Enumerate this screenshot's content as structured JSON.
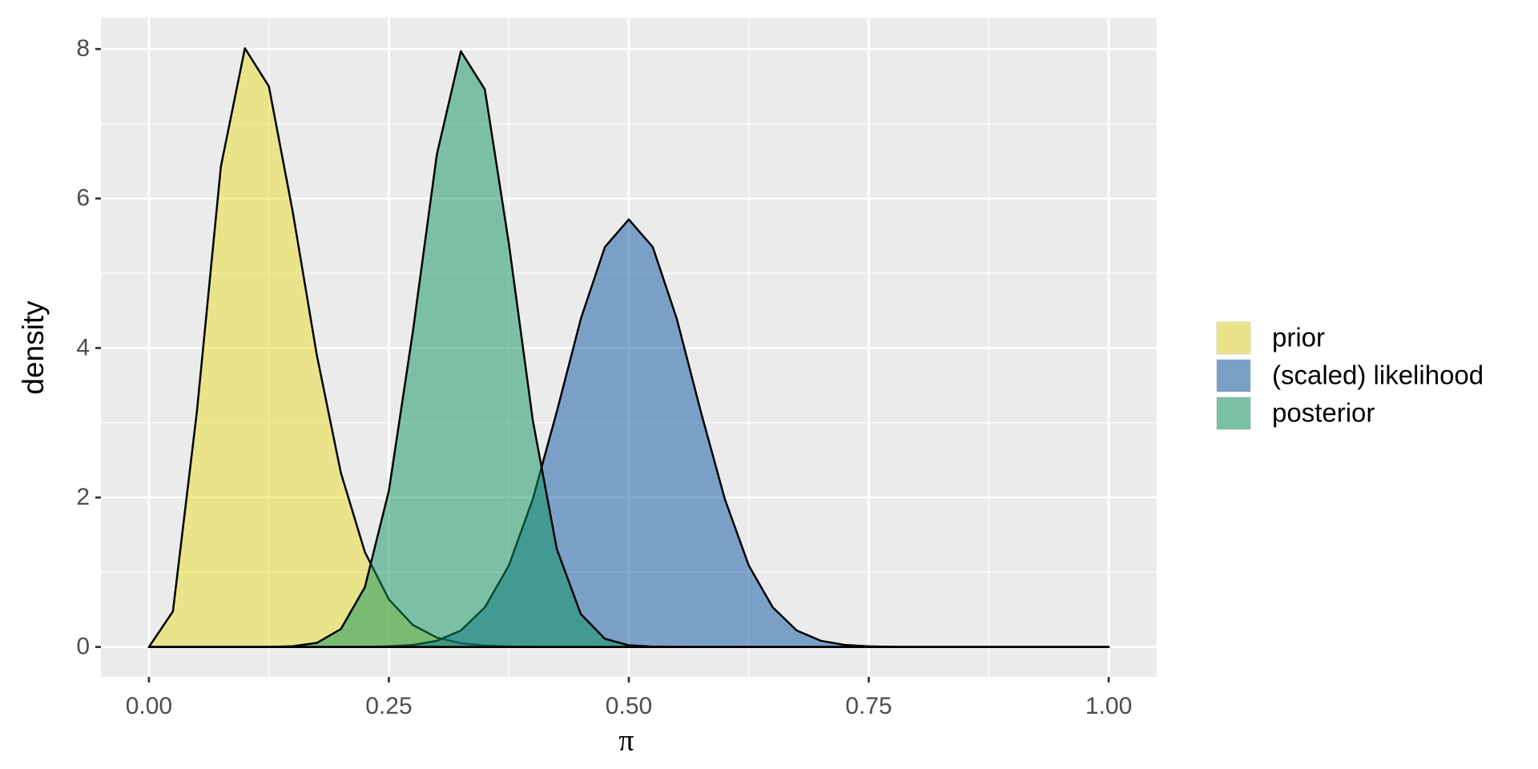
{
  "chart_data": {
    "type": "area",
    "x_label": "π",
    "y_label": "density",
    "x": [
      0,
      0.025,
      0.05,
      0.075,
      0.1,
      0.125,
      0.15,
      0.175,
      0.2,
      0.225,
      0.25,
      0.275,
      0.3,
      0.325,
      0.35,
      0.375,
      0.4,
      0.425,
      0.45,
      0.475,
      0.5,
      0.525,
      0.55,
      0.575,
      0.6,
      0.625,
      0.65,
      0.675,
      0.7,
      0.725,
      0.75,
      0.775,
      0.8,
      0.825,
      0.85,
      0.875,
      0.9,
      0.925,
      0.95,
      0.975,
      1
    ],
    "series": [
      {
        "name": "prior",
        "color": "#e7db29",
        "values": [
          0,
          0.476,
          3.15,
          6.43,
          8.01,
          7.5,
          5.81,
          3.9,
          2.33,
          1.27,
          0.636,
          0.294,
          0.126,
          0.05,
          0.019,
          0.007,
          0.002,
          0.001,
          0,
          0,
          0,
          0,
          0,
          0,
          0,
          0,
          0,
          0,
          0,
          0,
          0,
          0,
          0,
          0,
          0,
          0,
          0,
          0,
          0,
          0,
          0
        ]
      },
      {
        "name": "(scaled) likelihood",
        "color": "#0b55a5",
        "values": [
          0,
          0,
          0,
          0,
          0,
          0,
          0,
          0,
          0,
          0.002,
          0.008,
          0.027,
          0.083,
          0.22,
          0.53,
          1.09,
          1.98,
          3.15,
          4.39,
          5.35,
          5.72,
          5.35,
          4.39,
          3.15,
          1.98,
          1.09,
          0.53,
          0.22,
          0.083,
          0.027,
          0.008,
          0.002,
          0,
          0,
          0,
          0,
          0,
          0,
          0,
          0,
          0
        ]
      },
      {
        "name": "posterior",
        "color": "#0b935d",
        "values": [
          0,
          0,
          0,
          0,
          0,
          0,
          0.01,
          0.055,
          0.24,
          0.8,
          2.09,
          4.22,
          6.59,
          7.97,
          7.46,
          5.4,
          3.03,
          1.31,
          0.44,
          0.11,
          0.023,
          0.004,
          0,
          0,
          0,
          0,
          0,
          0,
          0,
          0,
          0,
          0,
          0,
          0,
          0,
          0,
          0,
          0,
          0,
          0,
          0
        ]
      }
    ],
    "alpha": 0.5,
    "xlim": [
      -0.05,
      1.05
    ],
    "xticks": [
      {
        "value": 0,
        "label": "0.00"
      },
      {
        "value": 0.25,
        "label": "0.25"
      },
      {
        "value": 0.5,
        "label": "0.50"
      },
      {
        "value": 0.75,
        "label": "0.75"
      },
      {
        "value": 1,
        "label": "1.00"
      }
    ],
    "ylim": [
      -0.4,
      8.42
    ],
    "yticks": [
      0,
      2,
      4,
      6,
      8
    ],
    "grid": true,
    "minor_grid": true,
    "legend": "right"
  }
}
